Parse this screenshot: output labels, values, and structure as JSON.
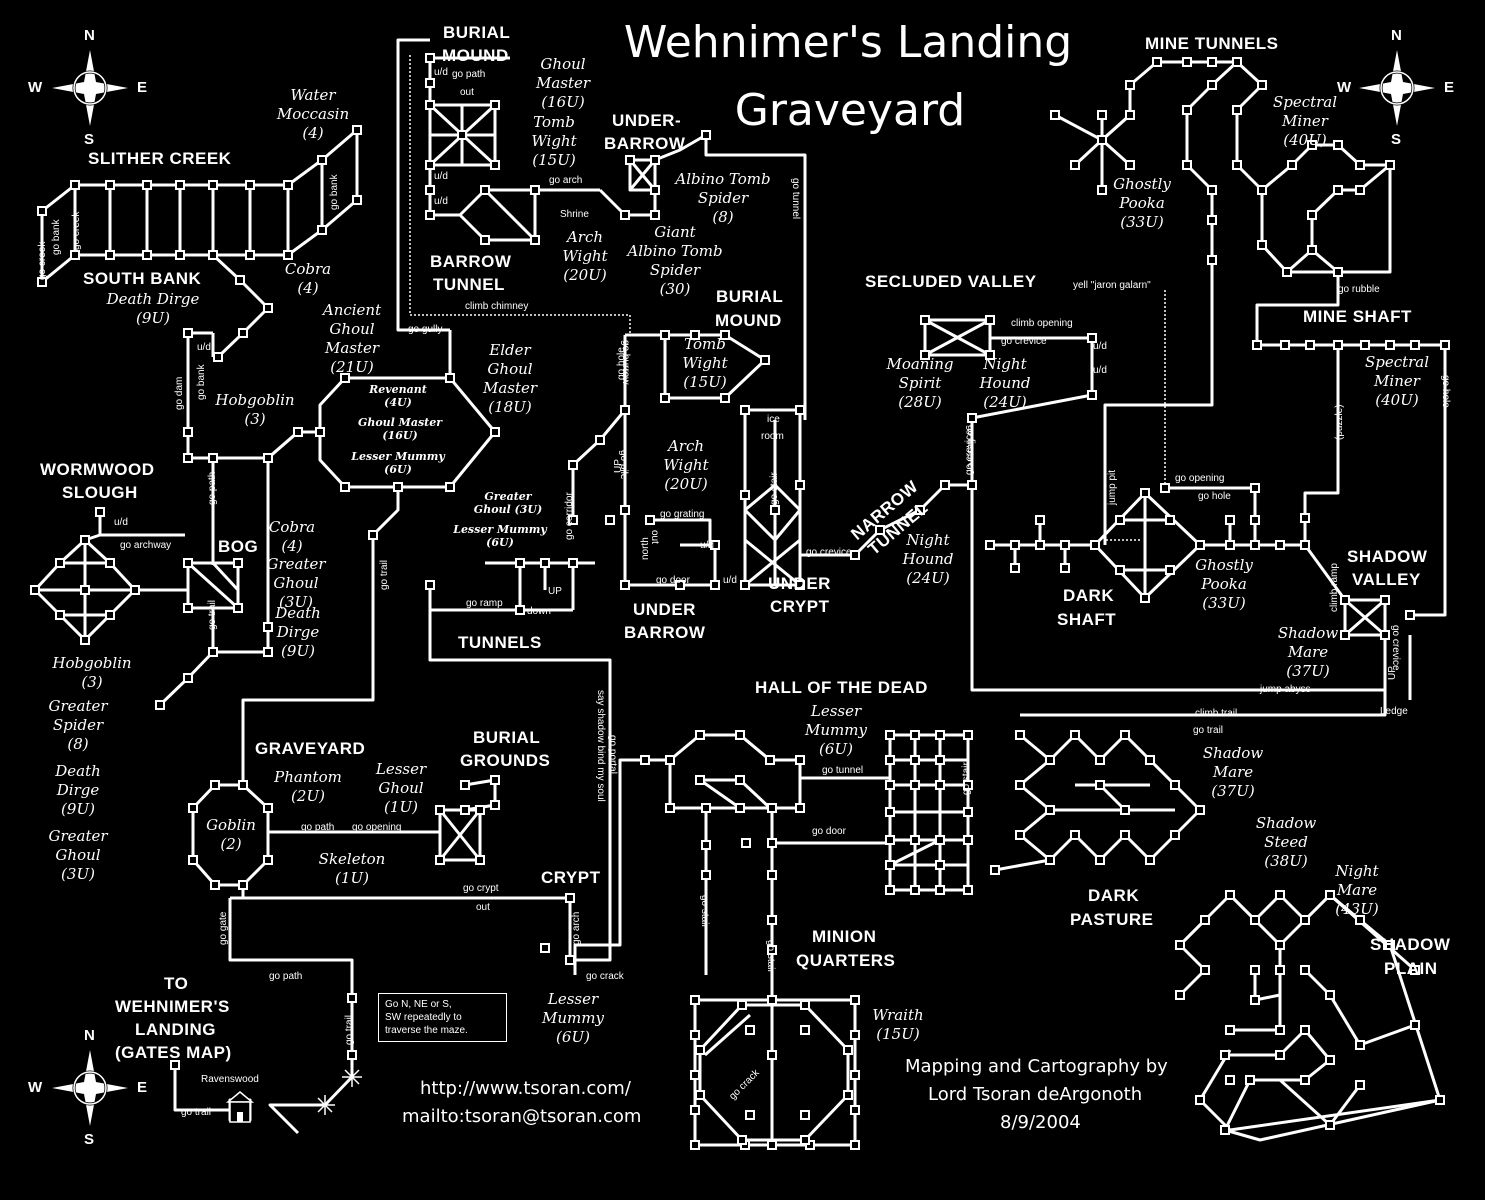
{
  "title": {
    "line1": "Wehnimer's Landing",
    "line2": "Graveyard"
  },
  "credit": {
    "line1": "Mapping and Cartography by",
    "line2": "Lord Tsoran deArgonoth",
    "date": "8/9/2004"
  },
  "urls": {
    "web": "http://www.tsoran.com/",
    "mail": "mailto:tsoran@tsoran.com"
  },
  "compass": {
    "n": "N",
    "s": "S",
    "e": "E",
    "w": "W"
  },
  "note": {
    "line1": "Go N, NE or S,",
    "line2": "SW repeatedly to",
    "line3": "traverse the maze."
  },
  "areas": {
    "slither_creek": "SLITHER CREEK",
    "south_bank": "SOUTH BANK",
    "wormwood_1": "WORMWOOD",
    "wormwood_2": "SLOUGH",
    "bog": "BOG",
    "burial_mound_1a": "BURIAL",
    "burial_mound_1b": "MOUND",
    "underbarrow_top_1": "UNDER-",
    "underbarrow_top_2": "BARROW",
    "barrow_tunnel_1": "BARROW",
    "barrow_tunnel_2": "TUNNEL",
    "burial_mound_2a": "BURIAL",
    "burial_mound_2b": "MOUND",
    "secluded_valley": "SECLUDED VALLEY",
    "mine_tunnels": "MINE TUNNELS",
    "mine_shaft": "MINE SHAFT",
    "narrow_tunnel_1": "NARROW",
    "narrow_tunnel_2": "TUNNEL",
    "dark_shaft_1": "DARK",
    "dark_shaft_2": "SHAFT",
    "shadow_valley_1": "SHADOW",
    "shadow_valley_2": "VALLEY",
    "under_crypt_1": "UNDER",
    "under_crypt_2": "CRYPT",
    "under_barrow_1": "UNDER",
    "under_barrow_2": "BARROW",
    "tunnels": "TUNNELS",
    "hall_of_dead": "HALL OF THE DEAD",
    "graveyard": "GRAVEYARD",
    "burial_grounds_1": "BURIAL",
    "burial_grounds_2": "GROUNDS",
    "crypt": "CRYPT",
    "minion_1": "MINION",
    "minion_2": "QUARTERS",
    "dark_pasture_1": "DARK",
    "dark_pasture_2": "PASTURE",
    "shadow_plain_1": "SHADOW",
    "shadow_plain_2": "PLAIN",
    "to_1": "TO",
    "to_2": "WEHNIMER'S",
    "to_3": "LANDING",
    "to_4": "(GATES MAP)"
  },
  "mobs": {
    "water_moccasin": [
      "Water",
      "Moccasin",
      "(4)"
    ],
    "cobra_top": [
      "Cobra",
      "(4)"
    ],
    "death_dirge_top": [
      "Death Dirge",
      "(9U)"
    ],
    "ancient_ghoul": [
      "Ancient",
      "Ghoul",
      "Master",
      "(21U)"
    ],
    "hobgoblin_top": [
      "Hobgoblin",
      "(3)"
    ],
    "elder_ghoul": [
      "Elder",
      "Ghoul",
      "Master",
      "(18U)"
    ],
    "ghoul_master_top": [
      "Ghoul",
      "Master",
      "(16U)"
    ],
    "tomb_wight_top": [
      "Tomb",
      "Wight",
      "(15U)"
    ],
    "albino_tomb": [
      "Albino Tomb",
      "Spider",
      "(8)"
    ],
    "arch_wight_top": [
      "Arch",
      "Wight",
      "(20U)"
    ],
    "giant_albino": [
      "Giant",
      "Albino Tomb",
      "Spider",
      "(30)"
    ],
    "tomb_wight_mid": [
      "Tomb",
      "Wight",
      "(15U)"
    ],
    "arch_wight_mid": [
      "Arch",
      "Wight",
      "(20U)"
    ],
    "moaning_spirit": [
      "Moaning",
      "Spirit",
      "(28U)"
    ],
    "night_hound_top": [
      "Night",
      "Hound",
      "(24U)"
    ],
    "ghostly_pooka_top": [
      "Ghostly",
      "Pooka",
      "(33U)"
    ],
    "spectral_miner_top": [
      "Spectral",
      "Miner",
      "(40U)"
    ],
    "spectral_miner_mid": [
      "Spectral",
      "Miner",
      "(40U)"
    ],
    "night_hound_mid": [
      "Night",
      "Hound",
      "(24U)"
    ],
    "ghostly_pooka_mid": [
      "Ghostly",
      "Pooka",
      "(33U)"
    ],
    "shadow_mare_top": [
      "Shadow",
      "Mare",
      "(37U)"
    ],
    "cobra_mid": [
      "Cobra",
      "(4)"
    ],
    "greater_ghoul_mid": [
      "Greater",
      "Ghoul",
      "(3U)"
    ],
    "death_dirge_mid": [
      "Death",
      "Dirge",
      "(9U)"
    ],
    "hobgoblin_left": [
      "Hobgoblin",
      "(3)"
    ],
    "greater_spider": [
      "Greater",
      "Spider",
      "(8)"
    ],
    "death_dirge_left": [
      "Death",
      "Dirge",
      "(9U)"
    ],
    "greater_ghoul_left": [
      "Greater",
      "Ghoul",
      "(3U)"
    ],
    "phantom": [
      "Phantom",
      "(2U)"
    ],
    "lesser_ghoul": [
      "Lesser",
      "Ghoul",
      "(1U)"
    ],
    "goblin": [
      "Goblin",
      "(2)"
    ],
    "skeleton": [
      "Skeleton",
      "(1U)"
    ],
    "lesser_mummy_crypt": [
      "Lesser",
      "Mummy",
      "(6U)"
    ],
    "lesser_mummy_hall": [
      "Lesser",
      "Mummy",
      "(6U)"
    ],
    "shadow_mare_bot": [
      "Shadow",
      "Mare",
      "(37U)"
    ],
    "shadow_steed": [
      "Shadow",
      "Steed",
      "(38U)"
    ],
    "night_mare": [
      "Night",
      "Mare",
      "(43U)"
    ],
    "wraith": [
      "Wraith",
      "(15U)"
    ]
  },
  "mobs_small": {
    "revenant": [
      "Revenant",
      "(4U)"
    ],
    "ghoul_master_in": [
      "Ghoul Master",
      "(16U)"
    ],
    "lesser_mummy_in": [
      "Lesser Mummy",
      "(6U)"
    ],
    "greater_ghoul_tun": [
      "Greater",
      "Ghoul (3U)"
    ],
    "lesser_mummy_tun": [
      "Lesser Mummy",
      "(6U)"
    ]
  },
  "cmds": {
    "go_creek_1": "go creek",
    "go_creek_2": "go creek",
    "go_bank_1": "go bank",
    "go_bank_2": "go bank",
    "go_path_mound": "go path",
    "out_mound": "out",
    "ud_1": "u/d",
    "ud_2": "u/d",
    "ud_3": "u/d",
    "go_arch": "go arch",
    "shrine": "Shrine",
    "go_tunnel": "go tunnel",
    "climb_chimney": "climb chimney",
    "go_gully": "go gully",
    "go_dam": "go dam",
    "go_bank_3": "go bank",
    "ud_4": "u/d",
    "go_path_bog": "go path",
    "go_archway": "go archway",
    "ud_5": "u/d",
    "go_trail_bog": "go trail",
    "go_trail_mid": "go trail",
    "go_hole": "go hole",
    "go_burrow": "go burrow",
    "go_pile": "go pile",
    "up_1": "UP",
    "go_corridor": "go corridor",
    "go_grating": "go grating",
    "north": "north",
    "out_2": "out",
    "ud_6": "u/d",
    "go_door_ub": "go door",
    "ud_7": "u/d",
    "ice_room_1": "ice",
    "ice_room_2": "room",
    "go_stair_uc": "go stair",
    "go_crevice_uc": "go crevice",
    "go_ramp": "go ramp",
    "up_2": "UP",
    "down": "down",
    "yell": "yell \"jaron galarn\"",
    "climb_opening": "climb opening",
    "go_crevice_sv": "go crevice",
    "ud_8": "u/d",
    "ud_9": "u/d",
    "go_rubble": "go rubble",
    "go_crevice_nt": "go crevice",
    "go_fissure": "go fissure",
    "jump_pit": "jump pit",
    "go_opening_ds": "go opening",
    "go_hole_ds": "go hole",
    "puzzle": "(puzzle)",
    "go_hole_ms": "go hole",
    "climb_ramp": "climb ramp",
    "go_crevice_shv": "go crevice",
    "up_3": "UP",
    "jump_abyss": "jump abyss",
    "ledge": "Ledge",
    "climb_trail": "climb trail",
    "go_trail_dp": "go trail",
    "say_shadow": "say shadow bind my soul",
    "go_portal": "go portal",
    "go_tunnel_hall": "go tunnel",
    "go_door_hall": "go door",
    "go_stair_hall": "go stair",
    "go_path_gy": "go path",
    "go_opening_gy": "go opening",
    "go_crypt": "go crypt",
    "out_3": "out",
    "go_gate": "go gate",
    "go_arch_crypt": "go arch",
    "go_crack": "go crack",
    "go_path_bot": "go path",
    "go_trail_bot": "go trail",
    "go_trail_rw": "go trail",
    "ravenswood": "Ravenswood",
    "go_stair_mq1": "go stair",
    "go_stair_mq2": "go stair",
    "go_crack_mq": "go crack"
  }
}
